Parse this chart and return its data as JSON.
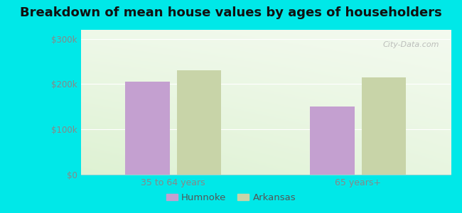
{
  "title": "Breakdown of mean house values by ages of householders",
  "categories": [
    "35 to 64 years",
    "65 years+"
  ],
  "humnoke_values": [
    205000,
    150000
  ],
  "arkansas_values": [
    230000,
    215000
  ],
  "humnoke_color": "#c4a0d0",
  "arkansas_color": "#c8d4a8",
  "background_color": "#00e8e8",
  "plot_bg_top": "#f0f8f0",
  "plot_bg_bottom": "#d8f0d8",
  "yticks": [
    0,
    100000,
    200000,
    300000
  ],
  "ytick_labels": [
    "$0",
    "$100k",
    "$200k",
    "$300k"
  ],
  "ylim": [
    0,
    320000
  ],
  "legend_labels": [
    "Humnoke",
    "Arkansas"
  ],
  "title_fontsize": 13,
  "bar_width": 0.12,
  "watermark": "City-Data.com"
}
